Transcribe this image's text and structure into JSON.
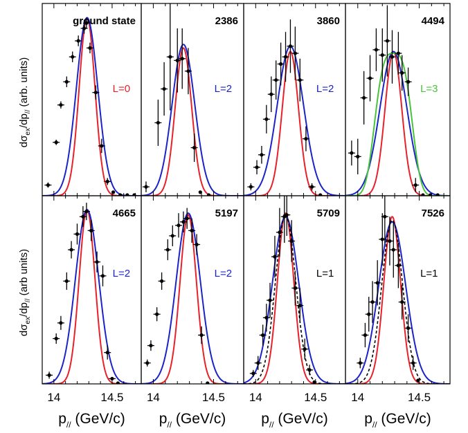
{
  "figure": {
    "ylabel_top": "dσex/dp// (arb. units)",
    "ylabel_bottom": "dσex/dp// (arb units)"
  },
  "x_tick_labels": [
    "14",
    "14.5"
  ],
  "chart_data": [
    {
      "type": "scatter",
      "panel_label": "ground state",
      "L_label": "L=0",
      "L_color": "#e8202a",
      "xlabel": "",
      "xlim": [
        13.9,
        14.75
      ],
      "ylim": [
        0,
        1.08
      ],
      "curves": [
        {
          "color": "#e8202a",
          "center": 14.285,
          "sigma": 0.068,
          "amp": 1.0
        },
        {
          "color": "#1a23c8",
          "center": 14.285,
          "sigma": 0.092,
          "amp": 1.0
        }
      ],
      "points": [
        {
          "x": 13.95,
          "y": 0.06,
          "e": 0.015
        },
        {
          "x": 14.02,
          "y": 0.3,
          "e": 0.015
        },
        {
          "x": 14.06,
          "y": 0.51,
          "e": 0.02
        },
        {
          "x": 14.11,
          "y": 0.64,
          "e": 0.03
        },
        {
          "x": 14.16,
          "y": 0.78,
          "e": 0.03
        },
        {
          "x": 14.21,
          "y": 0.87,
          "e": 0.03
        },
        {
          "x": 14.26,
          "y": 0.94,
          "e": 0.03
        },
        {
          "x": 14.28,
          "y": 0.97,
          "e": 0.03
        },
        {
          "x": 14.31,
          "y": 0.83,
          "e": 0.03
        },
        {
          "x": 14.36,
          "y": 0.58,
          "e": 0.04
        },
        {
          "x": 14.41,
          "y": 0.28,
          "e": 0.04
        },
        {
          "x": 14.46,
          "y": 0.08,
          "e": 0.02
        },
        {
          "x": 14.51,
          "y": 0.02,
          "e": 0
        },
        {
          "x": 14.57,
          "y": 0.0,
          "e": 0
        },
        {
          "x": 14.63,
          "y": 0.0,
          "e": 0
        },
        {
          "x": 14.69,
          "y": 0.0,
          "e": 0
        }
      ]
    },
    {
      "type": "scatter",
      "panel_label": "2386",
      "L_label": "L=2",
      "L_color": "#1a23c8",
      "xlabel": "",
      "xlim": [
        13.9,
        14.75
      ],
      "ylim": [
        0,
        1.08
      ],
      "curves": [
        {
          "color": "#e8202a",
          "center": 14.25,
          "sigma": 0.068,
          "amp": 0.83
        },
        {
          "color": "#1a23c8",
          "center": 14.25,
          "sigma": 0.094,
          "amp": 0.85
        }
      ],
      "points": [
        {
          "x": 13.94,
          "y": 0.05,
          "e": 0.03
        },
        {
          "x": 14.04,
          "y": 0.41,
          "e": 0.13
        },
        {
          "x": 14.09,
          "y": 0.6,
          "e": 0.15
        },
        {
          "x": 14.14,
          "y": 0.78,
          "e": 0.3
        },
        {
          "x": 14.2,
          "y": 0.76,
          "e": 0.18
        },
        {
          "x": 14.24,
          "y": 0.77,
          "e": 0.17
        },
        {
          "x": 14.29,
          "y": 0.7,
          "e": 0.13
        },
        {
          "x": 14.34,
          "y": 0.27,
          "e": 0.08
        },
        {
          "x": 14.39,
          "y": 0.02,
          "e": 0
        },
        {
          "x": 14.46,
          "y": 0.0,
          "e": 0
        }
      ]
    },
    {
      "type": "scatter",
      "panel_label": "3860",
      "L_label": "L=2",
      "L_color": "#1a23c8",
      "xlabel": "",
      "xlim": [
        13.9,
        14.75
      ],
      "ylim": [
        0,
        1.08
      ],
      "curves": [
        {
          "color": "#e8202a",
          "center": 14.29,
          "sigma": 0.068,
          "amp": 0.81
        },
        {
          "color": "#1a23c8",
          "center": 14.29,
          "sigma": 0.11,
          "amp": 0.84
        }
      ],
      "points": [
        {
          "x": 13.96,
          "y": 0.05,
          "e": 0.02
        },
        {
          "x": 14.01,
          "y": 0.16,
          "e": 0.04
        },
        {
          "x": 14.05,
          "y": 0.23,
          "e": 0.05
        },
        {
          "x": 14.09,
          "y": 0.43,
          "e": 0.08
        },
        {
          "x": 14.13,
          "y": 0.57,
          "e": 0.1
        },
        {
          "x": 14.17,
          "y": 0.65,
          "e": 0.11
        },
        {
          "x": 14.21,
          "y": 0.74,
          "e": 0.12
        },
        {
          "x": 14.25,
          "y": 0.78,
          "e": 0.14
        },
        {
          "x": 14.29,
          "y": 0.84,
          "e": 0.15
        },
        {
          "x": 14.33,
          "y": 0.8,
          "e": 0.15
        },
        {
          "x": 14.37,
          "y": 0.65,
          "e": 0.12
        },
        {
          "x": 14.42,
          "y": 0.32,
          "e": 0.07
        },
        {
          "x": 14.47,
          "y": 0.05,
          "e": 0.02
        },
        {
          "x": 14.54,
          "y": 0.0,
          "e": 0
        }
      ]
    },
    {
      "type": "scatter",
      "panel_label": "4494",
      "L_label": "L=3",
      "L_color": "#48c43a",
      "xlabel": "",
      "xlim": [
        13.9,
        14.75
      ],
      "ylim": [
        0,
        1.08
      ],
      "curves": [
        {
          "color": "#e8202a",
          "center": 14.29,
          "sigma": 0.068,
          "amp": 0.81
        },
        {
          "color": "#1a23c8",
          "center": 14.29,
          "sigma": 0.11,
          "amp": 0.81
        },
        {
          "color": "#48c43a",
          "center": 14.29,
          "sigma": 0.14,
          "amp": 0.8,
          "flat": true
        }
      ],
      "points": [
        {
          "x": 13.95,
          "y": 0.24,
          "e": 0.07
        },
        {
          "x": 14.0,
          "y": 0.22,
          "e": 0.1
        },
        {
          "x": 14.05,
          "y": 0.55,
          "e": 0.15
        },
        {
          "x": 14.1,
          "y": 0.66,
          "e": 0.13
        },
        {
          "x": 14.15,
          "y": 0.82,
          "e": 0.12
        },
        {
          "x": 14.2,
          "y": 0.79,
          "e": 0.15
        },
        {
          "x": 14.24,
          "y": 0.87,
          "e": 0.2
        },
        {
          "x": 14.28,
          "y": 0.78,
          "e": 0.15
        },
        {
          "x": 14.33,
          "y": 0.8,
          "e": 0.12
        },
        {
          "x": 14.36,
          "y": 0.69,
          "e": 0.1
        },
        {
          "x": 14.41,
          "y": 0.64,
          "e": 0.08
        },
        {
          "x": 14.47,
          "y": 0.06,
          "e": 0.04
        },
        {
          "x": 14.53,
          "y": 0.0,
          "e": 0
        },
        {
          "x": 14.59,
          "y": 0.0,
          "e": 0
        },
        {
          "x": 14.65,
          "y": 0.0,
          "e": 0
        }
      ]
    },
    {
      "type": "scatter",
      "panel_label": "4665",
      "L_label": "L=2",
      "L_color": "#1a23c8",
      "xlabel": "p// (GeV/c)",
      "xlim": [
        13.9,
        14.75
      ],
      "ylim": [
        0,
        1.08
      ],
      "curves": [
        {
          "color": "#e8202a",
          "center": 14.285,
          "sigma": 0.068,
          "amp": 1.0
        },
        {
          "color": "#1a23c8",
          "center": 14.285,
          "sigma": 0.1,
          "amp": 1.0
        }
      ],
      "points": [
        {
          "x": 13.96,
          "y": 0.05,
          "e": 0.02
        },
        {
          "x": 14.02,
          "y": 0.26,
          "e": 0.03
        },
        {
          "x": 14.06,
          "y": 0.35,
          "e": 0.04
        },
        {
          "x": 14.11,
          "y": 0.59,
          "e": 0.05
        },
        {
          "x": 14.15,
          "y": 0.77,
          "e": 0.05
        },
        {
          "x": 14.2,
          "y": 0.86,
          "e": 0.06
        },
        {
          "x": 14.25,
          "y": 0.96,
          "e": 0.06
        },
        {
          "x": 14.28,
          "y": 0.99,
          "e": 0.05
        },
        {
          "x": 14.32,
          "y": 0.88,
          "e": 0.06
        },
        {
          "x": 14.37,
          "y": 0.7,
          "e": 0.06
        },
        {
          "x": 14.42,
          "y": 0.62,
          "e": 0.06
        },
        {
          "x": 14.46,
          "y": 0.18,
          "e": 0.04
        },
        {
          "x": 14.5,
          "y": 0.03,
          "e": 0.01
        },
        {
          "x": 14.55,
          "y": 0.0,
          "e": 0
        }
      ]
    },
    {
      "type": "scatter",
      "panel_label": "5197",
      "L_label": "L=2",
      "L_color": "#1a23c8",
      "xlabel": "p// (GeV/c)",
      "xlim": [
        13.9,
        14.75
      ],
      "ylim": [
        0,
        1.08
      ],
      "curves": [
        {
          "color": "#e8202a",
          "center": 14.29,
          "sigma": 0.068,
          "amp": 0.97
        },
        {
          "color": "#1a23c8",
          "center": 14.29,
          "sigma": 0.1,
          "amp": 0.98
        }
      ],
      "points": [
        {
          "x": 13.95,
          "y": 0.12,
          "e": 0.02
        },
        {
          "x": 13.98,
          "y": 0.22,
          "e": 0.03
        },
        {
          "x": 14.03,
          "y": 0.4,
          "e": 0.04
        },
        {
          "x": 14.07,
          "y": 0.59,
          "e": 0.05
        },
        {
          "x": 14.12,
          "y": 0.77,
          "e": 0.06
        },
        {
          "x": 14.16,
          "y": 0.85,
          "e": 0.06
        },
        {
          "x": 14.21,
          "y": 0.91,
          "e": 0.07
        },
        {
          "x": 14.25,
          "y": 0.93,
          "e": 0.06
        },
        {
          "x": 14.28,
          "y": 0.95,
          "e": 0.06
        },
        {
          "x": 14.32,
          "y": 0.88,
          "e": 0.07
        },
        {
          "x": 14.36,
          "y": 0.8,
          "e": 0.06
        },
        {
          "x": 14.4,
          "y": 0.28,
          "e": 0.05
        },
        {
          "x": 14.45,
          "y": 0.0,
          "e": 0
        }
      ]
    },
    {
      "type": "scatter",
      "panel_label": "5709",
      "L_label": "L=1",
      "L_color": "#000000",
      "xlabel": "p// (GeV/c)",
      "xlim": [
        13.9,
        14.75
      ],
      "ylim": [
        0,
        1.08
      ],
      "curves": [
        {
          "color": "#e8202a",
          "center": 14.25,
          "sigma": 0.068,
          "amp": 0.98
        },
        {
          "color": "#1a23c8",
          "center": 14.25,
          "sigma": 0.11,
          "amp": 0.96
        },
        {
          "color": "#000000",
          "center": 14.25,
          "sigma": 0.085,
          "amp": 0.97,
          "dashed": true
        }
      ],
      "points": [
        {
          "x": 13.98,
          "y": 0.06,
          "e": 0.02
        },
        {
          "x": 14.02,
          "y": 0.12,
          "e": 0.04
        },
        {
          "x": 14.06,
          "y": 0.28,
          "e": 0.06
        },
        {
          "x": 14.09,
          "y": 0.38,
          "e": 0.08
        },
        {
          "x": 14.12,
          "y": 0.48,
          "e": 0.1
        },
        {
          "x": 14.16,
          "y": 0.73,
          "e": 0.12
        },
        {
          "x": 14.2,
          "y": 0.87,
          "e": 0.14
        },
        {
          "x": 14.24,
          "y": 0.96,
          "e": 0.15
        },
        {
          "x": 14.26,
          "y": 0.97,
          "e": 0.12
        },
        {
          "x": 14.3,
          "y": 0.82,
          "e": 0.12
        },
        {
          "x": 14.33,
          "y": 0.55,
          "e": 0.1
        },
        {
          "x": 14.37,
          "y": 0.45,
          "e": 0.1
        },
        {
          "x": 14.41,
          "y": 0.2,
          "e": 0.06
        },
        {
          "x": 14.45,
          "y": 0.08,
          "e": 0.03
        },
        {
          "x": 14.49,
          "y": 0.01,
          "e": 0
        }
      ]
    },
    {
      "type": "scatter",
      "panel_label": "7526",
      "L_label": "L=1",
      "L_color": "#000000",
      "xlabel": "p// (GeV/c)",
      "xlim": [
        13.9,
        14.75
      ],
      "ylim": [
        0,
        1.08
      ],
      "curves": [
        {
          "color": "#e8202a",
          "center": 14.28,
          "sigma": 0.068,
          "amp": 0.96
        },
        {
          "color": "#1a23c8",
          "center": 14.28,
          "sigma": 0.11,
          "amp": 0.93
        },
        {
          "color": "#000000",
          "center": 14.28,
          "sigma": 0.085,
          "amp": 0.94,
          "dashed": true
        }
      ],
      "points": [
        {
          "x": 14.02,
          "y": 0.12,
          "e": 0.03
        },
        {
          "x": 14.06,
          "y": 0.28,
          "e": 0.07
        },
        {
          "x": 14.09,
          "y": 0.4,
          "e": 0.1
        },
        {
          "x": 14.12,
          "y": 0.47,
          "e": 0.12
        },
        {
          "x": 14.16,
          "y": 0.58,
          "e": 0.13
        },
        {
          "x": 14.2,
          "y": 0.83,
          "e": 0.15
        },
        {
          "x": 14.22,
          "y": 0.96,
          "e": 0.15
        },
        {
          "x": 14.26,
          "y": 0.82,
          "e": 0.14
        },
        {
          "x": 14.29,
          "y": 0.77,
          "e": 0.16
        },
        {
          "x": 14.33,
          "y": 0.68,
          "e": 0.13
        },
        {
          "x": 14.36,
          "y": 0.47,
          "e": 0.1
        },
        {
          "x": 14.41,
          "y": 0.32,
          "e": 0.08
        },
        {
          "x": 14.45,
          "y": 0.12,
          "e": 0.04
        },
        {
          "x": 14.49,
          "y": 0.02,
          "e": 0
        }
      ]
    }
  ]
}
